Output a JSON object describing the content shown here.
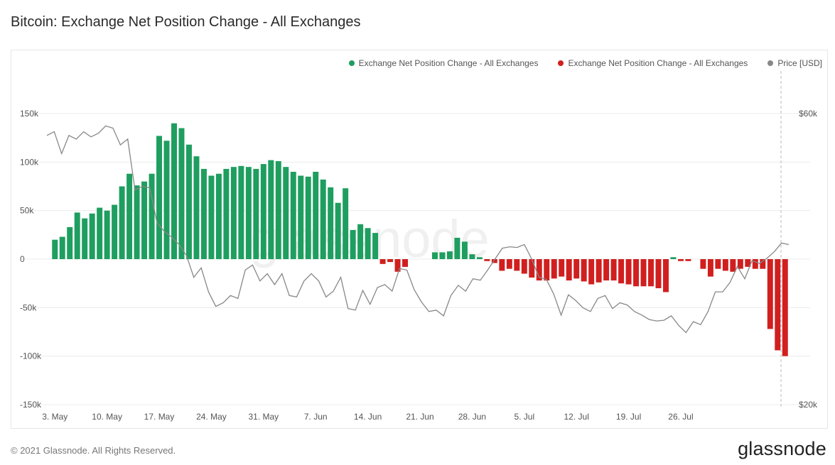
{
  "title": "Bitcoin: Exchange Net Position Change - All Exchanges",
  "footer": {
    "copyright": "© 2021 Glassnode. All Rights Reserved.",
    "brand": "glassnode"
  },
  "watermark": "glassnode",
  "colors": {
    "positive": "#1e9e5f",
    "negative": "#d11f1f",
    "price": "#888888",
    "grid": "#ececec"
  },
  "legend": [
    {
      "label": "Exchange Net Position Change - All Exchanges",
      "color": "#1e9e5f"
    },
    {
      "label": "Exchange Net Position Change - All Exchanges",
      "color": "#d11f1f"
    },
    {
      "label": "Price [USD]",
      "color": "#888888"
    }
  ],
  "chart_data": {
    "type": "bar",
    "title": "Bitcoin: Exchange Net Position Change - All Exchanges",
    "x_start": "3. May",
    "x_ticks": [
      "3. May",
      "10. May",
      "17. May",
      "24. May",
      "31. May",
      "7. Jun",
      "14. Jun",
      "21. Jun",
      "28. Jun",
      "5. Jul",
      "12. Jul",
      "19. Jul",
      "26. Jul"
    ],
    "ylim": [
      -150000,
      150000
    ],
    "y_ticks": [
      {
        "value": 150000,
        "label": "150k"
      },
      {
        "value": 100000,
        "label": "100k"
      },
      {
        "value": 50000,
        "label": "50k"
      },
      {
        "value": 0,
        "label": "0"
      },
      {
        "value": -50000,
        "label": "-50k"
      },
      {
        "value": -100000,
        "label": "-100k"
      },
      {
        "value": -150000,
        "label": "-150k"
      }
    ],
    "y2lim": [
      20000,
      60000
    ],
    "y2_ticks": [
      {
        "value": 60000,
        "label": "$60k"
      },
      {
        "value": 20000,
        "label": "$20k"
      }
    ],
    "grid": true,
    "legend_position": "top-right",
    "series": [
      {
        "name": "Exchange Net Position Change - All Exchanges",
        "type": "bar",
        "values": [
          20000,
          23000,
          33000,
          48000,
          42000,
          47000,
          53000,
          50000,
          56000,
          75000,
          88000,
          76000,
          80000,
          88000,
          127000,
          122000,
          140000,
          135000,
          118000,
          106000,
          93000,
          86000,
          88000,
          93000,
          95000,
          96000,
          95000,
          93000,
          98000,
          102000,
          101000,
          95000,
          90000,
          86000,
          85000,
          90000,
          82000,
          74000,
          58000,
          73000,
          30000,
          36000,
          32000,
          27000,
          -5000,
          -3000,
          -13000,
          -8000,
          0,
          0,
          0,
          7000,
          7000,
          8000,
          22000,
          18000,
          5000,
          2000,
          -2000,
          -4000,
          -12000,
          -10000,
          -12000,
          -15000,
          -19000,
          -22000,
          -22000,
          -20000,
          -18000,
          -22000,
          -20000,
          -23000,
          -26000,
          -24000,
          -22000,
          -22000,
          -25000,
          -26000,
          -28000,
          -28000,
          -28000,
          -30000,
          -34000,
          2000,
          -2000,
          -2000,
          0,
          -10000,
          -18000,
          -10000,
          -12000,
          -13000,
          -10000,
          -8000,
          -10000,
          -10000,
          -72000,
          -94000,
          -100000
        ]
      },
      {
        "name": "Price [USD]",
        "type": "line",
        "axis": "right",
        "values": [
          57000,
          57500,
          54500,
          57000,
          56500,
          57500,
          56800,
          57300,
          58300,
          58000,
          55700,
          56500,
          49500,
          50000,
          49800,
          45000,
          43800,
          43000,
          42000,
          40500,
          37500,
          38800,
          35500,
          33500,
          34000,
          35000,
          34600,
          38500,
          39200,
          37000,
          38000,
          36500,
          38000,
          35000,
          34800,
          37000,
          38000,
          37000,
          34800,
          35600,
          37500,
          33200,
          33000,
          35700,
          33800,
          36100,
          36500,
          35600,
          38700,
          38500,
          35800,
          34100,
          32800,
          33000,
          32200,
          35000,
          36400,
          35600,
          37300,
          37100,
          38500,
          40000,
          41500,
          41700,
          41600,
          42000,
          40000,
          37500,
          37200,
          35200,
          32300,
          35100,
          34300,
          33300,
          32800,
          34600,
          35000,
          33200,
          34000,
          33700,
          32800,
          32300,
          31700,
          31500,
          31600,
          32200,
          30900,
          29900,
          31400,
          31000,
          32800,
          35500,
          35500,
          36800,
          39000,
          37300,
          39800,
          39400,
          40100,
          41000,
          42200,
          42000
        ]
      }
    ]
  }
}
